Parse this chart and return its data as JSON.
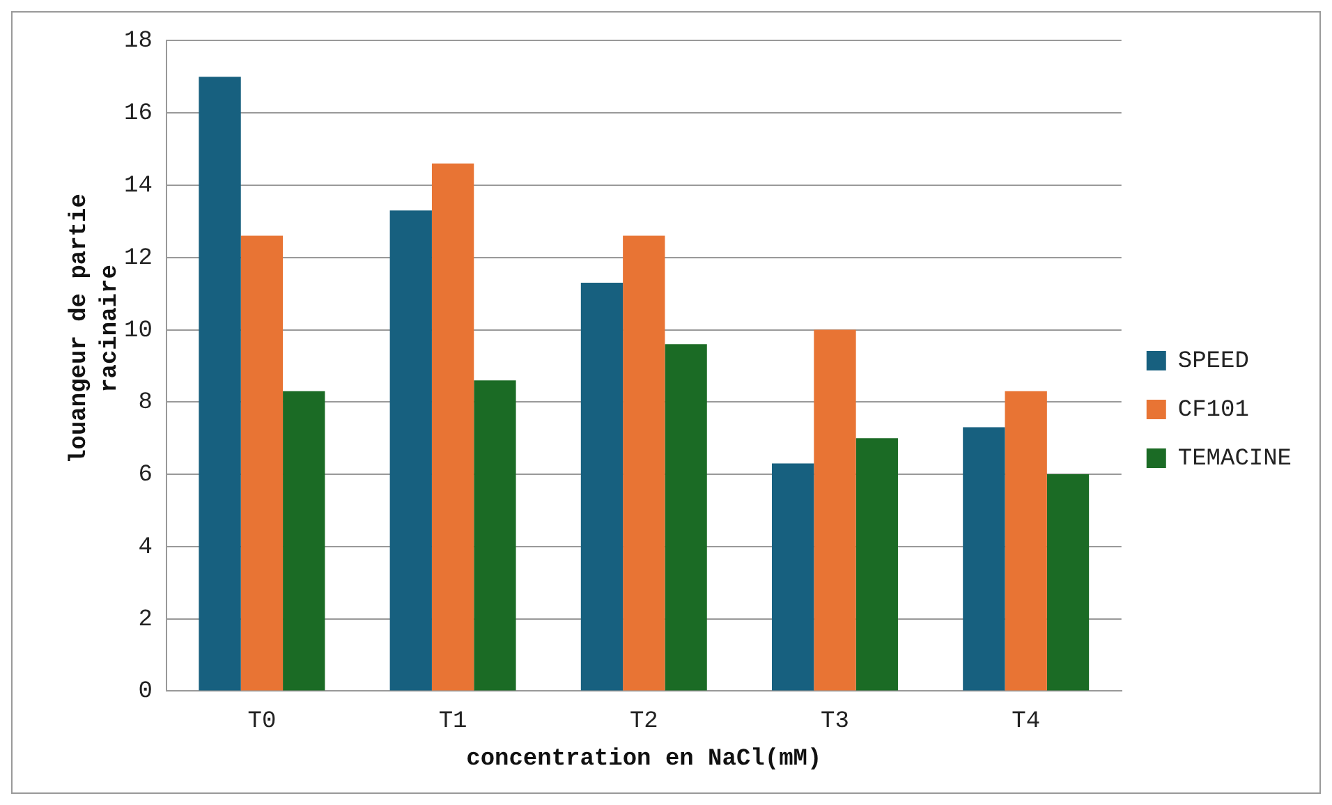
{
  "chart_data": {
    "type": "bar",
    "xlabel": "concentration en NaCl(mM)",
    "ylabel": "louangeur de partie racinaire",
    "categories": [
      "T0",
      "T1",
      "T2",
      "T3",
      "T4"
    ],
    "series": [
      {
        "name": "SPEED",
        "color": "#17607f",
        "values": [
          17,
          13.3,
          11.3,
          6.3,
          7.3
        ]
      },
      {
        "name": "CF101",
        "color": "#e87434",
        "values": [
          12.6,
          14.6,
          12.6,
          10,
          8.3
        ]
      },
      {
        "name": "TEMACINE",
        "color": "#1b6b25",
        "values": [
          8.3,
          8.6,
          9.6,
          7,
          6
        ]
      }
    ],
    "ylim": [
      0,
      18
    ],
    "yticks": [
      0,
      2,
      4,
      6,
      8,
      10,
      12,
      14,
      16,
      18
    ],
    "grid": "y",
    "legend": "right"
  }
}
